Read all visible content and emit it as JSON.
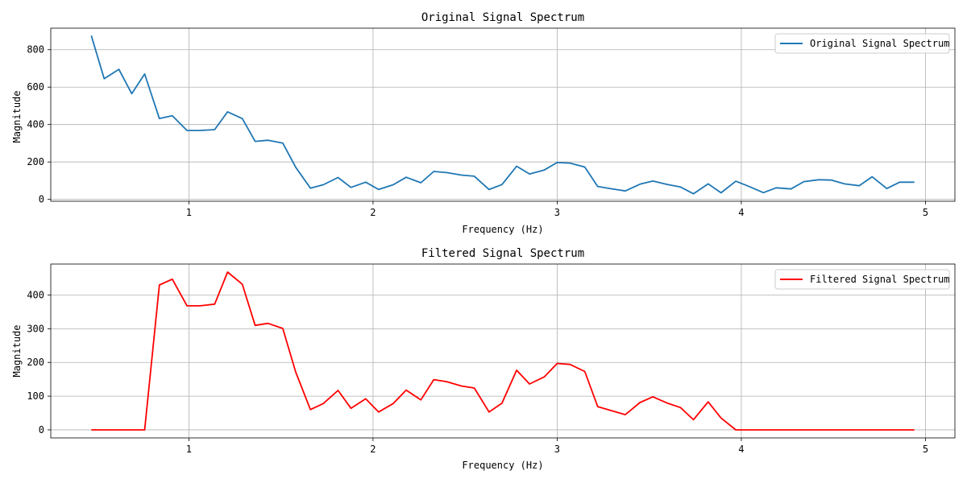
{
  "chart_data": [
    {
      "type": "line",
      "title": "Original Signal Spectrum",
      "xlabel": "Frequency (Hz)",
      "ylabel": "Magnitude",
      "xlim": [
        0.25,
        5.16
      ],
      "ylim": [
        -10,
        915
      ],
      "xticks": [
        1,
        2,
        3,
        4,
        5
      ],
      "yticks": [
        0,
        200,
        400,
        600,
        800
      ],
      "grid": true,
      "legend_position": "top-right",
      "series": [
        {
          "name": "Original Signal Spectrum",
          "color": "#1f77b4",
          "x": [
            0.47,
            0.54,
            0.62,
            0.69,
            0.76,
            0.84,
            0.91,
            0.99,
            1.06,
            1.14,
            1.21,
            1.29,
            1.36,
            1.43,
            1.51,
            1.58,
            1.66,
            1.73,
            1.81,
            1.88,
            1.96,
            2.03,
            2.11,
            2.18,
            2.26,
            2.33,
            2.4,
            2.48,
            2.55,
            2.63,
            2.7,
            2.78,
            2.85,
            2.93,
            3.0,
            3.07,
            3.15,
            3.22,
            3.3,
            3.37,
            3.45,
            3.52,
            3.6,
            3.67,
            3.74,
            3.82,
            3.89,
            3.97,
            4.04,
            4.12,
            4.19,
            4.27,
            4.34,
            4.42,
            4.49,
            4.56,
            4.64,
            4.71,
            4.79,
            4.86,
            4.94
          ],
          "y": [
            875,
            645,
            695,
            565,
            670,
            432,
            447,
            368,
            368,
            373,
            468,
            432,
            310,
            316,
            301,
            172,
            60,
            78,
            117,
            64,
            92,
            53,
            78,
            118,
            89,
            149,
            143,
            130,
            124,
            53,
            79,
            177,
            136,
            157,
            197,
            194,
            173,
            69,
            56,
            45,
            81,
            98,
            79,
            66,
            30,
            83,
            35,
            97,
            70,
            36,
            62,
            56,
            95,
            105,
            103,
            83,
            73,
            121,
            58,
            92,
            92
          ]
        }
      ]
    },
    {
      "type": "line",
      "title": "Filtered Signal Spectrum",
      "xlabel": "Frequency (Hz)",
      "ylabel": "Magnitude",
      "xlim": [
        0.25,
        5.16
      ],
      "ylim": [
        -24,
        492
      ],
      "xticks": [
        1,
        2,
        3,
        4,
        5
      ],
      "yticks": [
        0,
        100,
        200,
        300,
        400
      ],
      "grid": true,
      "legend_position": "top-right",
      "series": [
        {
          "name": "Filtered Signal Spectrum",
          "color": "#ff0000",
          "x": [
            0.47,
            0.54,
            0.62,
            0.69,
            0.76,
            0.84,
            0.91,
            0.99,
            1.06,
            1.14,
            1.21,
            1.29,
            1.36,
            1.43,
            1.51,
            1.58,
            1.66,
            1.73,
            1.81,
            1.88,
            1.96,
            2.03,
            2.11,
            2.18,
            2.26,
            2.33,
            2.4,
            2.48,
            2.55,
            2.63,
            2.7,
            2.78,
            2.85,
            2.93,
            3.0,
            3.07,
            3.15,
            3.22,
            3.3,
            3.37,
            3.45,
            3.52,
            3.6,
            3.67,
            3.74,
            3.82,
            3.89,
            3.97,
            4.04,
            4.12,
            4.19,
            4.27,
            4.34,
            4.42,
            4.49,
            4.56,
            4.64,
            4.71,
            4.79,
            4.86,
            4.94
          ],
          "y": [
            0,
            0,
            0,
            0,
            0,
            430,
            447,
            368,
            368,
            373,
            468,
            432,
            310,
            316,
            301,
            172,
            60,
            78,
            117,
            64,
            92,
            53,
            78,
            118,
            89,
            149,
            143,
            130,
            124,
            53,
            79,
            177,
            136,
            157,
            197,
            194,
            173,
            69,
            56,
            45,
            81,
            98,
            79,
            66,
            30,
            83,
            35,
            0,
            0,
            0,
            0,
            0,
            0,
            0,
            0,
            0,
            0,
            0,
            0,
            0,
            0
          ]
        }
      ]
    }
  ]
}
